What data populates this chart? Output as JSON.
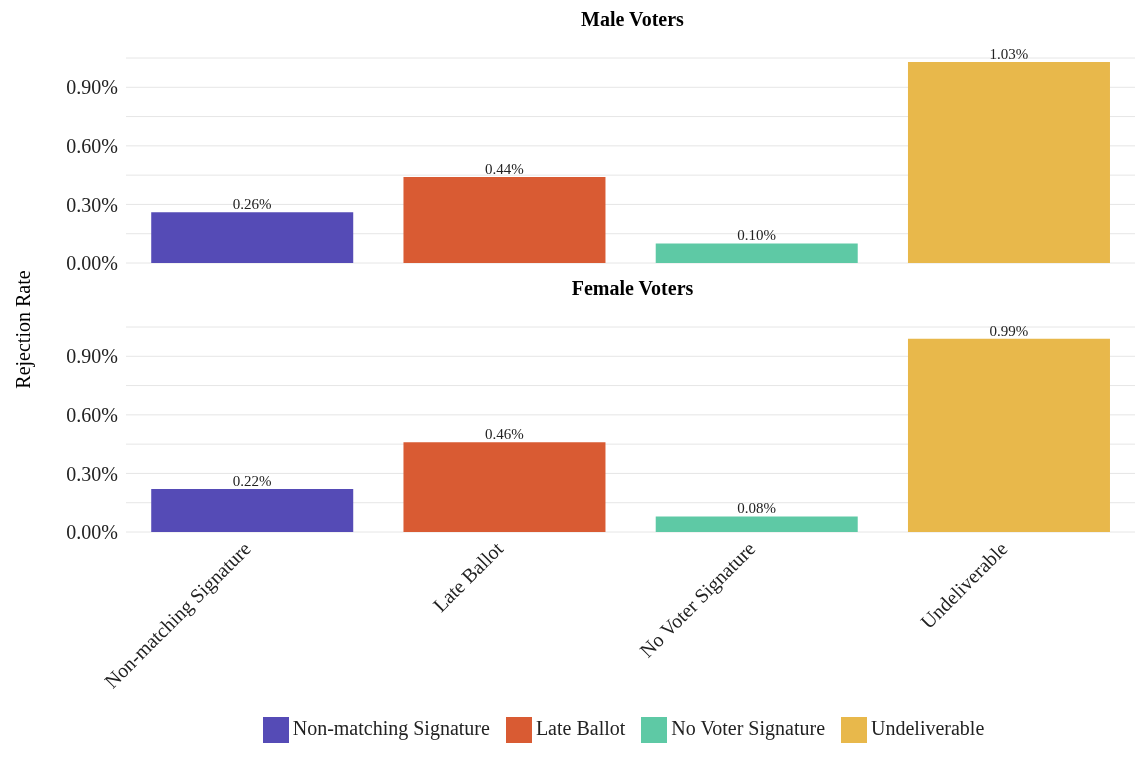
{
  "chart_data": [
    {
      "type": "bar",
      "title": "Male Voters",
      "ylabel": "Rejection Rate",
      "categories": [
        null,
        null,
        null,
        null
      ],
      "stacked": true,
      "series": [
        {
          "color": "#554bb6",
          "values": [
            0.26,
            null,
            null,
            null
          ],
          "value_labels": [
            "0.26%",
            null,
            null,
            null
          ]
        },
        {
          "color": "#d95b33",
          "values": [
            null,
            0.44,
            null,
            null
          ],
          "value_labels": [
            null,
            "0.44%",
            null,
            null
          ]
        },
        {
          "color": "#5ec9a5",
          "values": [
            null,
            null,
            0.1,
            null
          ],
          "value_labels": [
            null,
            null,
            "0.10%",
            null
          ]
        },
        {
          "color": "#e8b84b",
          "values": [
            null,
            null,
            null,
            1.03
          ],
          "value_labels": [
            null,
            null,
            null,
            "1.03%"
          ]
        }
      ],
      "ylim": [
        0,
        1.05
      ],
      "yticks": [
        {
          "value": 0,
          "label": "0.00%"
        },
        {
          "value": 0.15,
          "label": null
        },
        {
          "value": 0.3,
          "label": "0.30%"
        },
        {
          "value": 0.45,
          "label": null
        },
        {
          "value": 0.6,
          "label": "0.60%"
        },
        {
          "value": 0.75,
          "label": null
        },
        {
          "value": 0.9,
          "label": "0.90%"
        },
        {
          "value": 1.05,
          "label": null
        }
      ],
      "grid": "y",
      "tick_labels": "y"
    },
    {
      "type": "bar",
      "title": "Female Voters",
      "categories": [
        "Non-matching Signature",
        "Late Ballot",
        "No Voter Signature",
        "Undeliverable"
      ],
      "stacked": true,
      "series": [
        {
          "name": "Non-matching Signature",
          "color": "#554bb6",
          "values": [
            0.22,
            null,
            null,
            null
          ],
          "value_labels": [
            "0.22%",
            null,
            null,
            null
          ]
        },
        {
          "name": "Late Ballot",
          "color": "#d95b33",
          "values": [
            null,
            0.46,
            null,
            null
          ],
          "value_labels": [
            null,
            "0.46%",
            null,
            null
          ]
        },
        {
          "name": "No Voter Signature",
          "color": "#5ec9a5",
          "values": [
            null,
            null,
            0.08,
            null
          ],
          "value_labels": [
            null,
            null,
            "0.08%",
            null
          ]
        },
        {
          "name": "Undeliverable",
          "color": "#e8b84b",
          "values": [
            null,
            null,
            null,
            0.99
          ],
          "value_labels": [
            null,
            null,
            null,
            "0.99%"
          ]
        }
      ],
      "ylim": [
        0,
        1.05
      ],
      "yticks": [
        {
          "value": 0,
          "label": "0.00%"
        },
        {
          "value": 0.15,
          "label": null
        },
        {
          "value": 0.3,
          "label": "0.30%"
        },
        {
          "value": 0.45,
          "label": null
        },
        {
          "value": 0.6,
          "label": "0.60%"
        },
        {
          "value": 0.75,
          "label": null
        },
        {
          "value": 0.9,
          "label": "0.90%"
        },
        {
          "value": 1.05,
          "label": null
        }
      ],
      "grid": "y",
      "legend": "bottom"
    }
  ]
}
